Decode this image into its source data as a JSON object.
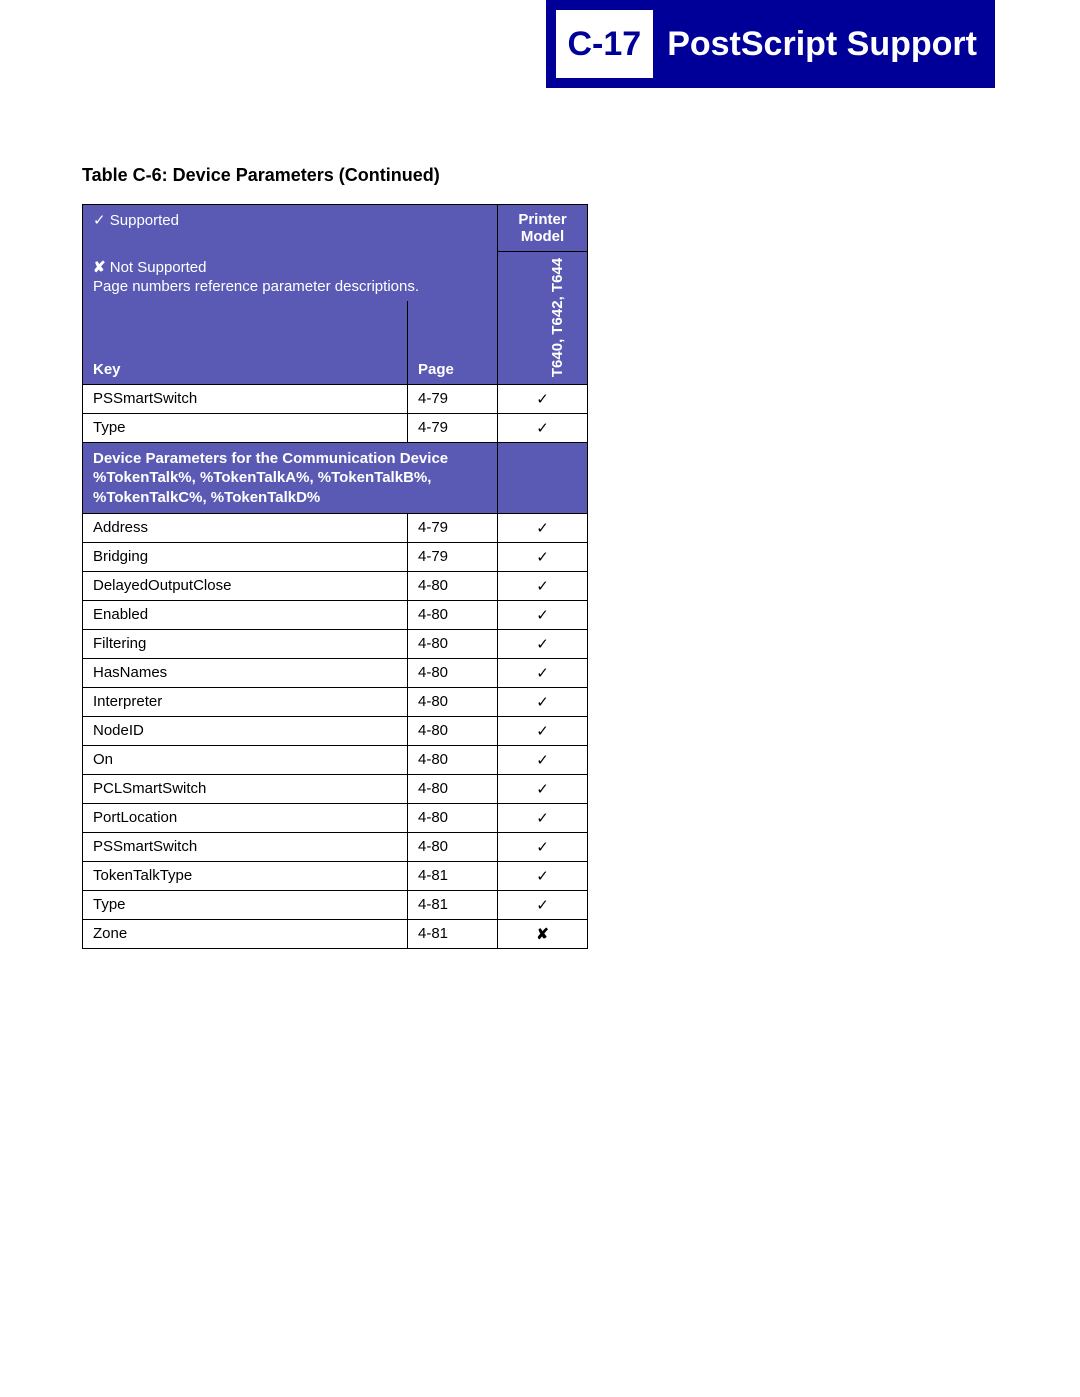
{
  "header": {
    "badge": "C-17",
    "title": "PostScript Support"
  },
  "caption": "Table C-6:  Device Parameters (Continued)",
  "legend": {
    "supported_mark": "✓",
    "supported_label": "Supported",
    "not_supported_mark": "✘",
    "not_supported_label": "Not Supported",
    "note": "Page numbers reference parameter descriptions."
  },
  "columns": {
    "key": "Key",
    "page": "Page",
    "model_header": "Printer Model",
    "model_name": "T640, T642, T644"
  },
  "colors": {
    "banner_bg": "#000099",
    "header_bg": "#5a5ab5",
    "header_fg": "#ffffff",
    "cell_fg": "#000000",
    "border": "#000000"
  },
  "rows": [
    {
      "type": "data",
      "key": "PSSmartSwitch",
      "page": "4-79",
      "supported": true
    },
    {
      "type": "data",
      "key": "Type",
      "page": "4-79",
      "supported": true
    },
    {
      "type": "section",
      "title": "Device Parameters for the Communication Device %TokenTalk%, %TokenTalkA%, %TokenTalkB%, %TokenTalkC%, %TokenTalkD%"
    },
    {
      "type": "data",
      "key": "Address",
      "page": "4-79",
      "supported": true
    },
    {
      "type": "data",
      "key": "Bridging",
      "page": "4-79",
      "supported": true
    },
    {
      "type": "data",
      "key": "DelayedOutputClose",
      "page": "4-80",
      "supported": true
    },
    {
      "type": "data",
      "key": "Enabled",
      "page": "4-80",
      "supported": true
    },
    {
      "type": "data",
      "key": "Filtering",
      "page": "4-80",
      "supported": true
    },
    {
      "type": "data",
      "key": "HasNames",
      "page": "4-80",
      "supported": true
    },
    {
      "type": "data",
      "key": "Interpreter",
      "page": "4-80",
      "supported": true
    },
    {
      "type": "data",
      "key": "NodeID",
      "page": "4-80",
      "supported": true
    },
    {
      "type": "data",
      "key": "On",
      "page": "4-80",
      "supported": true
    },
    {
      "type": "data",
      "key": "PCLSmartSwitch",
      "page": "4-80",
      "supported": true
    },
    {
      "type": "data",
      "key": "PortLocation",
      "page": "4-80",
      "supported": true
    },
    {
      "type": "data",
      "key": "PSSmartSwitch",
      "page": "4-80",
      "supported": true
    },
    {
      "type": "data",
      "key": "TokenTalkType",
      "page": "4-81",
      "supported": true
    },
    {
      "type": "data",
      "key": "Type",
      "page": "4-81",
      "supported": true
    },
    {
      "type": "data",
      "key": "Zone",
      "page": "4-81",
      "supported": false
    }
  ]
}
